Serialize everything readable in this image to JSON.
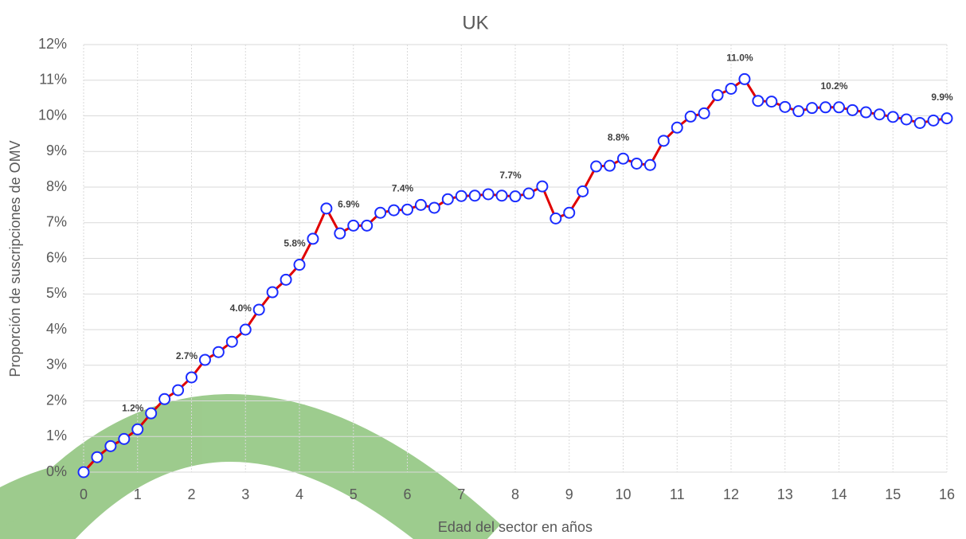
{
  "chart_data": {
    "type": "line",
    "title": "UK",
    "x_label": "Edad del sector en años",
    "y_label": "Proporción de suscripciones de OMV",
    "x": [
      0,
      0.25,
      0.5,
      0.75,
      1,
      1.25,
      1.5,
      1.75,
      2,
      2.25,
      2.5,
      2.75,
      3,
      3.25,
      3.5,
      3.75,
      4,
      4.25,
      4.5,
      4.75,
      5,
      5.25,
      5.5,
      5.75,
      6,
      6.25,
      6.5,
      6.75,
      7,
      7.25,
      7.5,
      7.75,
      8,
      8.25,
      8.5,
      8.75,
      9,
      9.25,
      9.5,
      9.75,
      10,
      10.25,
      10.5,
      10.75,
      11,
      11.25,
      11.5,
      11.75,
      12,
      12.25,
      12.5,
      12.75,
      13,
      13.25,
      13.5,
      13.75,
      14,
      14.25,
      14.5,
      14.75,
      15,
      15.25,
      15.5,
      15.75,
      16
    ],
    "series": [
      {
        "color": "#e00000",
        "marker_color": "#1a2cff",
        "values": [
          0.0,
          0.42,
          0.73,
          0.93,
          1.2,
          1.65,
          2.05,
          2.3,
          2.66,
          3.15,
          3.37,
          3.66,
          4.0,
          4.56,
          5.05,
          5.4,
          5.82,
          6.55,
          7.4,
          6.7,
          6.92,
          6.92,
          7.28,
          7.35,
          7.37,
          7.5,
          7.42,
          7.66,
          7.75,
          7.76,
          7.8,
          7.76,
          7.74,
          7.82,
          8.02,
          7.12,
          7.28,
          7.88,
          8.58,
          8.6,
          8.8,
          8.66,
          8.62,
          9.3,
          9.67,
          9.98,
          10.07,
          10.58,
          10.76,
          11.03,
          10.42,
          10.4,
          10.25,
          10.13,
          10.22,
          10.24,
          10.24,
          10.16,
          10.1,
          10.04,
          9.97,
          9.9,
          9.8,
          9.87,
          9.93
        ],
        "value_labels": [
          null,
          null,
          null,
          null,
          "1.2%",
          null,
          null,
          null,
          "2.7%",
          null,
          null,
          null,
          "4.0%",
          null,
          null,
          null,
          "5.8%",
          null,
          null,
          null,
          "6.9%",
          null,
          null,
          null,
          "7.4%",
          null,
          null,
          null,
          null,
          null,
          null,
          null,
          "7.7%",
          null,
          null,
          null,
          null,
          null,
          null,
          null,
          "8.8%",
          null,
          null,
          null,
          null,
          null,
          null,
          null,
          null,
          "11.0%",
          null,
          null,
          null,
          null,
          null,
          null,
          "10.2%",
          null,
          null,
          null,
          null,
          null,
          null,
          null,
          "9.9%"
        ]
      }
    ],
    "xlim": [
      0,
      16
    ],
    "xticks": [
      0,
      1,
      2,
      3,
      4,
      5,
      6,
      7,
      8,
      9,
      10,
      11,
      12,
      13,
      14,
      15,
      16
    ],
    "ylim": [
      0,
      12
    ],
    "yticks": [
      {
        "value": 0,
        "label": "0%"
      },
      {
        "value": 1,
        "label": "1%"
      },
      {
        "value": 2,
        "label": "2%"
      },
      {
        "value": 3,
        "label": "3%"
      },
      {
        "value": 4,
        "label": "4%"
      },
      {
        "value": 5,
        "label": "5%"
      },
      {
        "value": 6,
        "label": "6%"
      },
      {
        "value": 7,
        "label": "7%"
      },
      {
        "value": 8,
        "label": "8%"
      },
      {
        "value": 9,
        "label": "9%"
      },
      {
        "value": 10,
        "label": "10%"
      },
      {
        "value": 11,
        "label": "11%"
      },
      {
        "value": 12,
        "label": "12%"
      }
    ],
    "grid": true
  }
}
